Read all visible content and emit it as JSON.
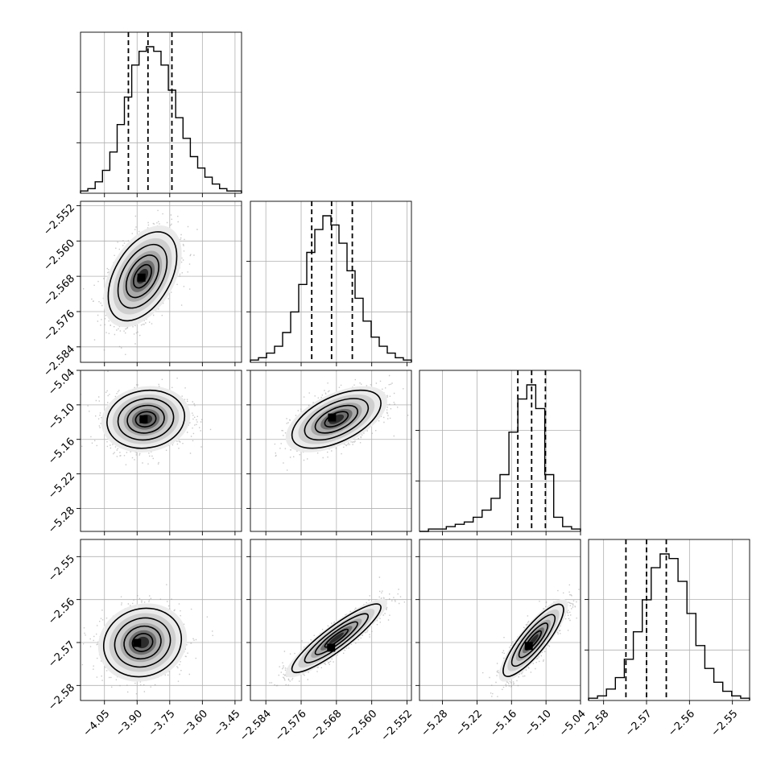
{
  "chart_data": {
    "type": "corner",
    "params": [
      {
        "index": 0,
        "lim": [
          -4.16,
          -3.42
        ],
        "ticks": [
          "−4.05",
          "−3.90",
          "−3.75",
          "−3.60",
          "−3.45"
        ],
        "tick_values": [
          -4.05,
          -3.9,
          -3.75,
          -3.6,
          -3.45
        ],
        "quantiles": [
          -3.94,
          -3.85,
          -3.74
        ]
      },
      {
        "index": 1,
        "lim": [
          -2.5875,
          -2.551
        ],
        "ticks": [
          "−2.584",
          "−2.576",
          "−2.568",
          "−2.560",
          "−2.552"
        ],
        "tick_values": [
          -2.584,
          -2.576,
          -2.568,
          -2.56,
          -2.552
        ],
        "quantiles": [
          -2.5736,
          -2.5691,
          -2.5644
        ]
      },
      {
        "index": 2,
        "lim": [
          -5.32,
          -5.04
        ],
        "ticks": [
          "−5.28",
          "−5.22",
          "−5.16",
          "−5.10",
          "−5.04"
        ],
        "tick_values": [
          -5.28,
          -5.22,
          -5.16,
          -5.1,
          -5.04
        ],
        "quantiles": [
          -5.149,
          -5.125,
          -5.101
        ]
      },
      {
        "index": 3,
        "lim": [
          -2.5835,
          -2.546
        ],
        "ticks": [
          "−2.58",
          "−2.57",
          "−2.56",
          "−2.55"
        ],
        "tick_values": [
          -2.58,
          -2.57,
          -2.56,
          -2.55
        ],
        "quantiles": [
          -2.5748,
          -2.57,
          -2.5654
        ]
      }
    ],
    "histograms": [
      {
        "counts": [
          1,
          2,
          5,
          10,
          18,
          30,
          42,
          56,
          62,
          64,
          62,
          56,
          45,
          33,
          24,
          16,
          11,
          7,
          4,
          2,
          1,
          1
        ]
      },
      {
        "counts": [
          1,
          2,
          4,
          7,
          13,
          22,
          34,
          48,
          58,
          64,
          60,
          52,
          40,
          28,
          18,
          11,
          7,
          4,
          2,
          1
        ]
      },
      {
        "counts": [
          0,
          1,
          1,
          2,
          3,
          4,
          6,
          9,
          14,
          24,
          42,
          56,
          62,
          52,
          24,
          6,
          2,
          1
        ]
      },
      {
        "counts": [
          1,
          2,
          5,
          10,
          18,
          30,
          44,
          58,
          64,
          62,
          52,
          38,
          24,
          14,
          8,
          4,
          2,
          1
        ]
      }
    ],
    "pairs": [
      {
        "row": 1,
        "col": 0,
        "center": [
          -3.875,
          -2.568
        ],
        "sd": [
          0.075,
          0.0048
        ],
        "corr": 0.45,
        "peak": [
          -3.88,
          -2.5683
        ]
      },
      {
        "row": 2,
        "col": 0,
        "center": [
          -3.86,
          -5.125
        ],
        "sd": [
          0.085,
          0.024
        ],
        "corr": 0.1,
        "peak": [
          -3.87,
          -5.125
        ]
      },
      {
        "row": 2,
        "col": 1,
        "center": [
          -2.568,
          -5.125
        ],
        "sd": [
          0.0048,
          0.024
        ],
        "corr": 0.55,
        "peak": [
          -2.569,
          -5.122
        ]
      },
      {
        "row": 3,
        "col": 0,
        "center": [
          -3.875,
          -2.57
        ],
        "sd": [
          0.085,
          0.0038
        ],
        "corr": 0.1,
        "peak": [
          -3.9,
          -2.5701
        ]
      },
      {
        "row": 3,
        "col": 1,
        "center": [
          -2.568,
          -2.569
        ],
        "sd": [
          0.0048,
          0.0038
        ],
        "corr": 0.9,
        "peak": [
          -2.5692,
          -2.5712
        ]
      },
      {
        "row": 3,
        "col": 2,
        "center": [
          -5.122,
          -2.5695
        ],
        "sd": [
          0.025,
          0.004
        ],
        "corr": 0.85,
        "peak": [
          -5.13,
          -2.5708
        ]
      }
    ],
    "contour_levels": [
      0.5,
      1.0,
      1.5,
      2.0
    ],
    "colors": {
      "line": "#000000",
      "points": "#9a9a9a",
      "grid": "#b0b0b0",
      "frame": "#000000",
      "background": "#ffffff"
    },
    "grid": true
  }
}
